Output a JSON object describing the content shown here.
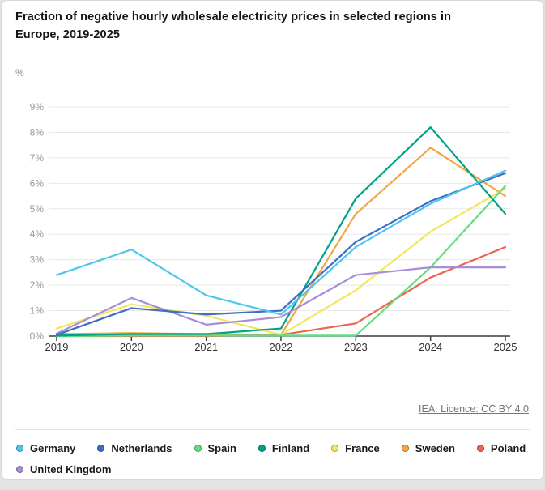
{
  "title": "Fraction of negative hourly wholesale electricity prices in selected regions in Europe, 2019-2025",
  "unit_label": "%",
  "footer": {
    "licence_link": "IEA. Licence: CC BY 4.0"
  },
  "axis": {
    "x_ticks": [
      "2019",
      "2020",
      "2021",
      "2022",
      "2023",
      "2024",
      "2025"
    ],
    "y_ticks": [
      "0%",
      "1%",
      "2%",
      "3%",
      "4%",
      "5%",
      "6%",
      "7%",
      "8%",
      "9%"
    ]
  },
  "chart_data": {
    "type": "line",
    "title": "Fraction of negative hourly wholesale electricity prices in selected regions in Europe, 2019-2025",
    "xlabel": "",
    "ylabel": "%",
    "x": [
      2019,
      2020,
      2021,
      2022,
      2023,
      2024,
      2025
    ],
    "ylim": [
      0,
      9
    ],
    "grid": true,
    "legend_position": "bottom",
    "series": [
      {
        "name": "Germany",
        "color": "#4dc6ee",
        "values": [
          2.4,
          3.4,
          1.6,
          0.85,
          3.5,
          5.2,
          6.5
        ]
      },
      {
        "name": "Netherlands",
        "color": "#3d6ec5",
        "values": [
          0.05,
          1.1,
          0.85,
          1.0,
          3.7,
          5.3,
          6.4
        ]
      },
      {
        "name": "Spain",
        "color": "#62de81",
        "values": [
          0.0,
          0.02,
          0.02,
          0.02,
          0.02,
          2.7,
          5.9
        ]
      },
      {
        "name": "Finland",
        "color": "#00a287",
        "values": [
          0.02,
          0.08,
          0.08,
          0.3,
          5.4,
          8.2,
          4.8
        ]
      },
      {
        "name": "France",
        "color": "#f3e55c",
        "values": [
          0.3,
          1.25,
          0.8,
          0.05,
          1.8,
          4.1,
          5.8
        ]
      },
      {
        "name": "Sweden",
        "color": "#f2a73e",
        "values": [
          0.08,
          0.12,
          0.08,
          0.05,
          4.8,
          7.4,
          5.5
        ]
      },
      {
        "name": "Poland",
        "color": "#ee6350",
        "values": [
          0.0,
          0.0,
          0.0,
          0.05,
          0.5,
          2.3,
          3.5
        ]
      },
      {
        "name": "United Kingdom",
        "color": "#a78cd9",
        "values": [
          0.1,
          1.5,
          0.45,
          0.75,
          2.4,
          2.7,
          2.7
        ]
      }
    ]
  },
  "colors": {
    "grid_line": "#e8e8e8",
    "axis_line": "#3c3c3c",
    "x_label": "#333333",
    "y_label": "#999999"
  }
}
